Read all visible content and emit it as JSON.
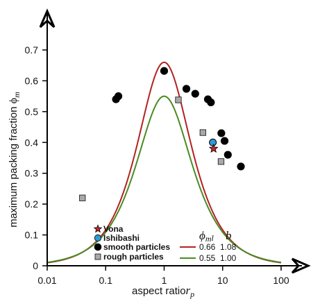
{
  "chart_data": {
    "type": "scatter",
    "xlabel_main": "aspect ratio",
    "xlabel_symbol": "r",
    "xlabel_sub": "p",
    "ylabel_main": "maximum packing fraction ",
    "ylabel_symbol": "ϕ",
    "ylabel_sub": "m",
    "x_scale": "log",
    "xlim": [
      0.01,
      100
    ],
    "ylim": [
      0,
      0.7
    ],
    "x_ticks": [
      0.01,
      0.1,
      1,
      10,
      100
    ],
    "x_tick_labels": [
      "0.01",
      "0.1",
      "1",
      "10",
      "100"
    ],
    "y_ticks": [
      0,
      0.1,
      0.2,
      0.3,
      0.4,
      0.5,
      0.6,
      0.7
    ],
    "y_tick_labels": [
      "0",
      "0.1",
      "0.2",
      "0.3",
      "0.4",
      "0.5",
      "0.6",
      "0.7"
    ],
    "grid": false,
    "legend_placement": "bottom-left",
    "fit_header_phi": "ϕ",
    "fit_header_sub": "m",
    "fit_header_sub2": "l",
    "fit_header_b": "b",
    "series": [
      {
        "name": "Vona",
        "marker": "star",
        "color": "#c62828",
        "points": [
          {
            "x": 7,
            "y": 0.38
          }
        ]
      },
      {
        "name": "Ishibashi",
        "marker": "circle",
        "color": "#2e9ad8",
        "points": [
          {
            "x": 6.8,
            "y": 0.4
          }
        ]
      },
      {
        "name": "smooth particles",
        "marker": "circle",
        "color": "#000000",
        "points": [
          {
            "x": 0.15,
            "y": 0.54
          },
          {
            "x": 0.165,
            "y": 0.55
          },
          {
            "x": 1.0,
            "y": 0.632
          },
          {
            "x": 2.4,
            "y": 0.574
          },
          {
            "x": 3.4,
            "y": 0.558
          },
          {
            "x": 5.6,
            "y": 0.54
          },
          {
            "x": 6.3,
            "y": 0.53
          },
          {
            "x": 9.5,
            "y": 0.43
          },
          {
            "x": 10.8,
            "y": 0.405
          },
          {
            "x": 12.3,
            "y": 0.36
          },
          {
            "x": 20.5,
            "y": 0.322
          }
        ]
      },
      {
        "name": "rough particles",
        "marker": "square",
        "color": "#a9a9a9",
        "points": [
          {
            "x": 0.04,
            "y": 0.22
          },
          {
            "x": 1.75,
            "y": 0.538
          },
          {
            "x": 4.6,
            "y": 0.432
          },
          {
            "x": 9.4,
            "y": 0.338
          }
        ]
      }
    ],
    "fits": [
      {
        "phi_m": "0.66",
        "b": "1.08",
        "phi_value": 0.66,
        "b_value": 1.08,
        "color": "#b22222"
      },
      {
        "phi_m": "0.55",
        "b": "1.00",
        "phi_value": 0.55,
        "b_value": 1.0,
        "color": "#4a8a22"
      }
    ]
  }
}
